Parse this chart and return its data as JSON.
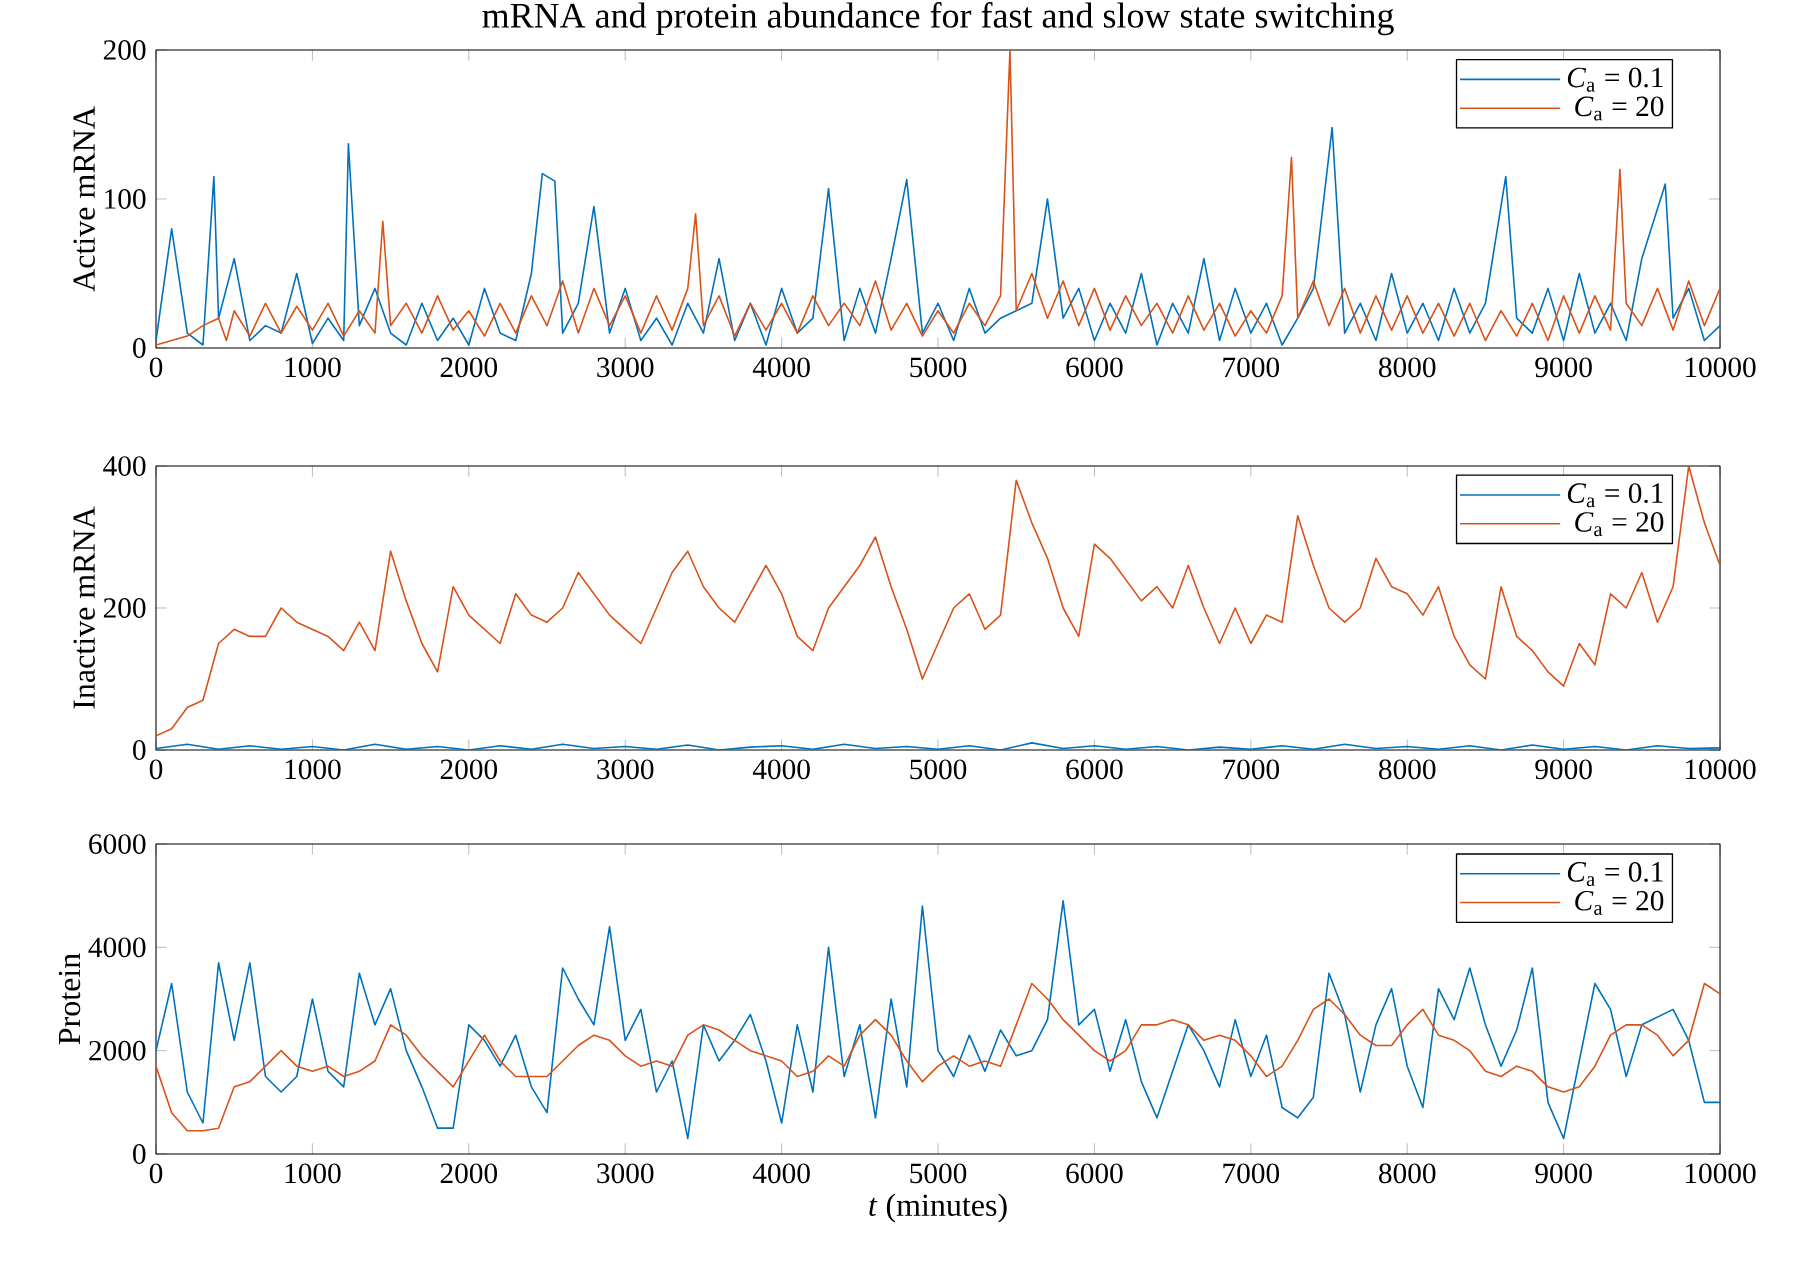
{
  "chart_data": [
    {
      "type": "line",
      "title": "mRNA and protein abundance for fast and slow state switching",
      "ylabel": "Active mRNA",
      "xlim": [
        0,
        10000
      ],
      "xticks": [
        0,
        1000,
        2000,
        3000,
        4000,
        5000,
        6000,
        7000,
        8000,
        9000,
        10000
      ],
      "ylim": [
        0,
        200
      ],
      "yticks": [
        0,
        100,
        200
      ],
      "legend": "top right",
      "series": [
        {
          "name": "*C*$_{a}$ = 0.1",
          "color": "#0072bd",
          "x": [
            0,
            100,
            200,
            300,
            370,
            400,
            500,
            600,
            700,
            800,
            900,
            1000,
            1100,
            1200,
            1230,
            1300,
            1400,
            1500,
            1600,
            1700,
            1800,
            1900,
            2000,
            2100,
            2200,
            2300,
            2400,
            2470,
            2550,
            2600,
            2700,
            2800,
            2900,
            3000,
            3100,
            3200,
            3300,
            3400,
            3500,
            3600,
            3700,
            3800,
            3900,
            4000,
            4100,
            4200,
            4300,
            4400,
            4500,
            4600,
            4700,
            4800,
            4900,
            5000,
            5100,
            5200,
            5300,
            5400,
            5500,
            5600,
            5700,
            5800,
            5900,
            6000,
            6100,
            6200,
            6300,
            6400,
            6500,
            6600,
            6700,
            6800,
            6900,
            7000,
            7100,
            7200,
            7300,
            7400,
            7520,
            7600,
            7700,
            7800,
            7900,
            8000,
            8100,
            8200,
            8300,
            8400,
            8500,
            8630,
            8700,
            8800,
            8900,
            9000,
            9100,
            9200,
            9300,
            9400,
            9500,
            9650,
            9700,
            9800,
            9900,
            10000
          ],
          "values": [
            5,
            80,
            10,
            2,
            115,
            20,
            60,
            5,
            15,
            10,
            50,
            3,
            20,
            5,
            137,
            15,
            40,
            10,
            2,
            30,
            5,
            20,
            2,
            40,
            10,
            5,
            50,
            117,
            112,
            10,
            30,
            95,
            10,
            40,
            5,
            20,
            2,
            30,
            10,
            60,
            5,
            30,
            2,
            40,
            10,
            20,
            107,
            5,
            40,
            10,
            60,
            113,
            10,
            30,
            5,
            40,
            10,
            20,
            25,
            30,
            100,
            20,
            40,
            5,
            30,
            10,
            50,
            2,
            30,
            10,
            60,
            5,
            40,
            10,
            30,
            2,
            20,
            40,
            148,
            10,
            30,
            5,
            50,
            10,
            30,
            5,
            40,
            10,
            30,
            115,
            20,
            10,
            40,
            5,
            50,
            10,
            30,
            5,
            60,
            110,
            20,
            40,
            5,
            15
          ]
        },
        {
          "name": "*C*$_{a}$ = 20",
          "color": "#d95319",
          "x": [
            0,
            100,
            200,
            300,
            400,
            450,
            500,
            600,
            700,
            800,
            900,
            1000,
            1100,
            1200,
            1300,
            1400,
            1450,
            1500,
            1600,
            1700,
            1800,
            1900,
            2000,
            2100,
            2200,
            2300,
            2400,
            2500,
            2600,
            2700,
            2800,
            2900,
            3000,
            3100,
            3200,
            3300,
            3400,
            3450,
            3500,
            3600,
            3700,
            3800,
            3900,
            4000,
            4100,
            4200,
            4300,
            4400,
            4500,
            4600,
            4700,
            4800,
            4900,
            5000,
            5100,
            5200,
            5300,
            5400,
            5460,
            5500,
            5600,
            5700,
            5800,
            5900,
            6000,
            6100,
            6200,
            6300,
            6400,
            6500,
            6600,
            6700,
            6800,
            6900,
            7000,
            7100,
            7200,
            7260,
            7300,
            7400,
            7500,
            7600,
            7700,
            7800,
            7900,
            8000,
            8100,
            8200,
            8300,
            8400,
            8500,
            8600,
            8700,
            8800,
            8900,
            9000,
            9100,
            9200,
            9300,
            9360,
            9400,
            9500,
            9600,
            9700,
            9800,
            9900,
            10000
          ],
          "values": [
            2,
            5,
            8,
            15,
            20,
            5,
            25,
            8,
            30,
            10,
            28,
            12,
            30,
            8,
            25,
            10,
            85,
            15,
            30,
            10,
            35,
            12,
            25,
            8,
            30,
            10,
            35,
            15,
            45,
            10,
            40,
            15,
            35,
            10,
            35,
            12,
            40,
            90,
            15,
            35,
            8,
            30,
            12,
            30,
            10,
            35,
            15,
            30,
            15,
            45,
            12,
            30,
            8,
            25,
            10,
            30,
            15,
            35,
            200,
            25,
            50,
            20,
            45,
            15,
            40,
            12,
            35,
            15,
            30,
            10,
            35,
            12,
            30,
            8,
            25,
            10,
            35,
            128,
            20,
            45,
            15,
            40,
            10,
            35,
            12,
            35,
            10,
            30,
            8,
            30,
            5,
            25,
            8,
            30,
            5,
            35,
            10,
            35,
            12,
            120,
            30,
            15,
            40,
            12,
            45,
            15,
            40
          ]
        }
      ]
    },
    {
      "type": "line",
      "ylabel": "Inactive mRNA",
      "xlim": [
        0,
        10000
      ],
      "xticks": [
        0,
        1000,
        2000,
        3000,
        4000,
        5000,
        6000,
        7000,
        8000,
        9000,
        10000
      ],
      "ylim": [
        0,
        400
      ],
      "yticks": [
        0,
        200,
        400
      ],
      "legend": "top right",
      "series": [
        {
          "name": "*C*$_{a}$ = 0.1",
          "color": "#0072bd",
          "x": [
            0,
            200,
            400,
            600,
            800,
            1000,
            1200,
            1400,
            1600,
            1800,
            2000,
            2200,
            2400,
            2600,
            2800,
            3000,
            3200,
            3400,
            3600,
            3800,
            4000,
            4200,
            4400,
            4600,
            4800,
            5000,
            5200,
            5400,
            5600,
            5800,
            6000,
            6200,
            6400,
            6600,
            6800,
            7000,
            7200,
            7400,
            7600,
            7800,
            8000,
            8200,
            8400,
            8600,
            8800,
            9000,
            9200,
            9400,
            9600,
            9800,
            10000
          ],
          "values": [
            2,
            8,
            1,
            6,
            1,
            5,
            0,
            8,
            1,
            5,
            0,
            6,
            1,
            8,
            2,
            5,
            1,
            7,
            0,
            4,
            6,
            1,
            8,
            2,
            5,
            1,
            6,
            0,
            10,
            2,
            6,
            1,
            5,
            0,
            4,
            1,
            6,
            1,
            8,
            2,
            5,
            1,
            6,
            0,
            7,
            1,
            5,
            0,
            6,
            2,
            3
          ]
        },
        {
          "name": "*C*$_{a}$ = 20",
          "color": "#d95319",
          "x": [
            0,
            100,
            200,
            300,
            400,
            500,
            600,
            700,
            800,
            900,
            1000,
            1100,
            1200,
            1300,
            1400,
            1500,
            1600,
            1700,
            1800,
            1900,
            2000,
            2100,
            2200,
            2300,
            2400,
            2500,
            2600,
            2700,
            2800,
            2900,
            3000,
            3100,
            3200,
            3300,
            3400,
            3500,
            3600,
            3700,
            3800,
            3900,
            4000,
            4100,
            4200,
            4300,
            4400,
            4500,
            4600,
            4700,
            4800,
            4900,
            5000,
            5100,
            5200,
            5300,
            5400,
            5500,
            5600,
            5700,
            5800,
            5900,
            6000,
            6100,
            6200,
            6300,
            6400,
            6500,
            6600,
            6700,
            6800,
            6900,
            7000,
            7100,
            7200,
            7300,
            7400,
            7500,
            7600,
            7700,
            7800,
            7900,
            8000,
            8100,
            8200,
            8300,
            8400,
            8500,
            8600,
            8700,
            8800,
            8900,
            9000,
            9100,
            9200,
            9300,
            9400,
            9500,
            9600,
            9700,
            9800,
            9900,
            10000
          ],
          "values": [
            20,
            30,
            60,
            70,
            150,
            170,
            160,
            160,
            200,
            180,
            170,
            160,
            140,
            180,
            140,
            280,
            210,
            150,
            110,
            230,
            190,
            170,
            150,
            220,
            190,
            180,
            200,
            250,
            220,
            190,
            170,
            150,
            200,
            250,
            280,
            230,
            200,
            180,
            220,
            260,
            220,
            160,
            140,
            200,
            230,
            260,
            300,
            230,
            170,
            100,
            150,
            200,
            220,
            170,
            190,
            380,
            320,
            270,
            200,
            160,
            290,
            270,
            240,
            210,
            230,
            200,
            260,
            200,
            150,
            200,
            150,
            190,
            180,
            330,
            260,
            200,
            180,
            200,
            270,
            230,
            220,
            190,
            230,
            160,
            120,
            100,
            230,
            160,
            140,
            110,
            90,
            150,
            120,
            220,
            200,
            250,
            180,
            230,
            400,
            320,
            260
          ]
        }
      ]
    },
    {
      "type": "line",
      "ylabel": "Protein",
      "xlabel": "*t* (minutes)",
      "xlim": [
        0,
        10000
      ],
      "xticks": [
        0,
        1000,
        2000,
        3000,
        4000,
        5000,
        6000,
        7000,
        8000,
        9000,
        10000
      ],
      "ylim": [
        0,
        6000
      ],
      "yticks": [
        0,
        2000,
        4000,
        6000
      ],
      "legend": "top right",
      "x": [
        0,
        100,
        200,
        300,
        400,
        500,
        600,
        700,
        800,
        900,
        1000,
        1100,
        1200,
        1300,
        1400,
        1500,
        1600,
        1700,
        1800,
        1900,
        2000,
        2100,
        2200,
        2300,
        2400,
        2500,
        2600,
        2700,
        2800,
        2900,
        3000,
        3100,
        3200,
        3300,
        3400,
        3500,
        3600,
        3700,
        3800,
        3900,
        4000,
        4100,
        4200,
        4300,
        4400,
        4500,
        4600,
        4700,
        4800,
        4900,
        5000,
        5100,
        5200,
        5300,
        5400,
        5500,
        5600,
        5700,
        5800,
        5900,
        6000,
        6100,
        6200,
        6300,
        6400,
        6500,
        6600,
        6700,
        6800,
        6900,
        7000,
        7100,
        7200,
        7300,
        7400,
        7500,
        7600,
        7700,
        7800,
        7900,
        8000,
        8100,
        8200,
        8300,
        8400,
        8500,
        8600,
        8700,
        8800,
        8900,
        9000,
        9100,
        9200,
        9300,
        9400,
        9500,
        9600,
        9700,
        9800,
        9900,
        10000
      ],
      "series": [
        {
          "name": "*C*$_{a}$ = 0.1",
          "color": "#0072bd",
          "values": [
            2000,
            3300,
            1200,
            600,
            3700,
            2200,
            3700,
            1500,
            1200,
            1500,
            3000,
            1600,
            1300,
            3500,
            2500,
            3200,
            2000,
            1300,
            500,
            500,
            2500,
            2200,
            1700,
            2300,
            1300,
            800,
            3600,
            3000,
            2500,
            4400,
            2200,
            2800,
            1200,
            1800,
            300,
            2500,
            1800,
            2200,
            2700,
            1800,
            600,
            2500,
            1200,
            4000,
            1500,
            2500,
            700,
            3000,
            1300,
            4800,
            2000,
            1500,
            2300,
            1600,
            2400,
            1900,
            2000,
            2600,
            4900,
            2500,
            2800,
            1600,
            2600,
            1400,
            700,
            1600,
            2500,
            2000,
            1300,
            2600,
            1500,
            2300,
            900,
            700,
            1100,
            3500,
            2700,
            1200,
            2500,
            3200,
            1700,
            900,
            3200,
            2600,
            3600,
            2500,
            1700,
            2400,
            3600,
            1000,
            300,
            1800,
            3300,
            2800,
            1500,
            2500,
            null,
            2800,
            2200,
            1000,
            1000
          ]
        },
        {
          "name": "*C*$_{a}$ = 20",
          "color": "#d95319",
          "values": [
            1700,
            800,
            450,
            450,
            500,
            1300,
            1400,
            1700,
            2000,
            1700,
            1600,
            1700,
            1500,
            1600,
            1800,
            2500,
            2300,
            1900,
            1600,
            1300,
            1800,
            2300,
            1800,
            1500,
            1500,
            1500,
            1800,
            2100,
            2300,
            2200,
            1900,
            1700,
            1800,
            1700,
            2300,
            2500,
            2400,
            2200,
            2000,
            1900,
            1800,
            1500,
            1600,
            1900,
            1700,
            2300,
            2600,
            2300,
            1800,
            1400,
            1700,
            1900,
            1700,
            1800,
            1700,
            2500,
            3300,
            3000,
            2600,
            2300,
            2000,
            1800,
            2000,
            2500,
            2500,
            2600,
            2500,
            2200,
            2300,
            2200,
            1900,
            1500,
            1700,
            2200,
            2800,
            3000,
            2700,
            2300,
            2100,
            2100,
            2500,
            2800,
            2300,
            2200,
            2000,
            1600,
            1500,
            1700,
            1600,
            1300,
            1200,
            1300,
            1700,
            2300,
            2500,
            2500,
            2300,
            1900,
            2200,
            3300,
            3100
          ]
        }
      ]
    }
  ]
}
